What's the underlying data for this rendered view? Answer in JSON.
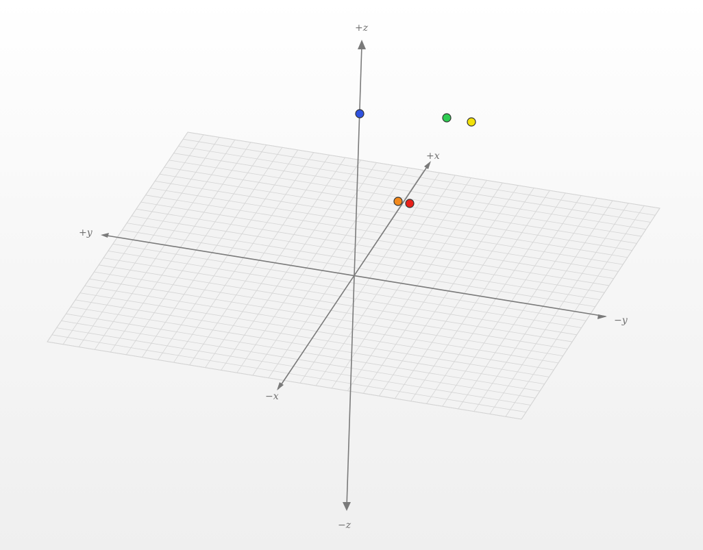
{
  "axes": {
    "x_pos_label": "+x",
    "x_neg_label": "−x",
    "y_pos_label": "+y",
    "y_neg_label": "−y",
    "z_pos_label": "+z",
    "z_neg_label": "−z"
  },
  "grid": {
    "visible": true,
    "divisions": 30
  },
  "points": [
    {
      "name": "blue-point",
      "color": "#2f52e0"
    },
    {
      "name": "green-point",
      "color": "#2ecc52"
    },
    {
      "name": "yellow-point",
      "color": "#f2e10a"
    },
    {
      "name": "orange-point",
      "color": "#f2891c"
    },
    {
      "name": "red-point",
      "color": "#e8201a"
    }
  ],
  "colors": {
    "axis": "#7a7a7a",
    "grid": "#d4d4d4",
    "background": "#f4f4f4"
  }
}
